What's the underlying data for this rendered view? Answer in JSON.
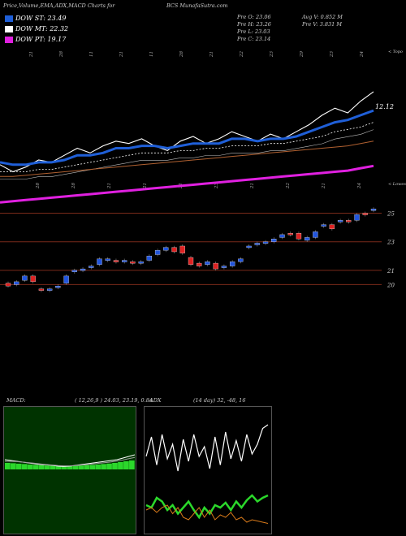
{
  "header": {
    "left": "Price,Volume,EMA,ADX,MACD Charts for",
    "symbol": "BCS MunafaSutra.com"
  },
  "legend": [
    {
      "label": "DOW ST: 23.49",
      "color": "#1f5fd8"
    },
    {
      "label": "DOW MT: 22.32",
      "color": "#ffffff"
    },
    {
      "label": "DOW PT: 19.17",
      "color": "#e020e0"
    }
  ],
  "stats": {
    "open": "Pre O: 23.06",
    "high": "Pre H: 23.26",
    "low": "Pre L: 23.03",
    "close": "Pre C: 23.14",
    "avg_vol": "Avg V: 0.852 M",
    "pre_vol": "Pre V: 3.831 M"
  },
  "axis_labels": {
    "top_right": "< Topo",
    "mid_right": "< Lowes",
    "ema_value": "12.12"
  },
  "date_row_top": [
    "21",
    "28",
    "11",
    "21",
    "11",
    "28",
    "21",
    "22",
    "23",
    "29",
    "23",
    "24"
  ],
  "date_row_mid": [
    "28",
    "28",
    "21",
    "21",
    "21",
    "23",
    "21",
    "22",
    "21",
    "24"
  ],
  "chart_data": [
    {
      "type": "line",
      "name": "price-ema",
      "series": [
        {
          "name": "price",
          "values": [
            10.2,
            9.9,
            10.1,
            10.4,
            10.3,
            10.6,
            10.9,
            10.7,
            11.0,
            11.2,
            11.1,
            11.3,
            11.0,
            10.8,
            11.2,
            11.4,
            11.1,
            11.3,
            11.6,
            11.4,
            11.2,
            11.5,
            11.3,
            11.6,
            11.9,
            12.3,
            12.6,
            12.4,
            12.9,
            13.3
          ]
        },
        {
          "name": "ema_short",
          "values": [
            10.3,
            10.2,
            10.2,
            10.3,
            10.3,
            10.4,
            10.6,
            10.6,
            10.7,
            10.9,
            10.9,
            11.0,
            11.0,
            10.9,
            11.0,
            11.1,
            11.1,
            11.1,
            11.3,
            11.3,
            11.2,
            11.3,
            11.3,
            11.4,
            11.6,
            11.8,
            12.0,
            12.1,
            12.3,
            12.5
          ]
        },
        {
          "name": "ema_mid",
          "values": [
            9.9,
            9.9,
            9.9,
            10.0,
            10.0,
            10.1,
            10.2,
            10.3,
            10.4,
            10.5,
            10.6,
            10.7,
            10.7,
            10.7,
            10.8,
            10.8,
            10.9,
            10.9,
            11.0,
            11.0,
            11.0,
            11.1,
            11.1,
            11.2,
            11.3,
            11.4,
            11.6,
            11.7,
            11.8,
            12.0
          ]
        },
        {
          "name": "ema_long",
          "values": [
            9.7,
            9.7,
            9.75,
            9.8,
            9.85,
            9.9,
            9.95,
            10.0,
            10.05,
            10.1,
            10.15,
            10.2,
            10.25,
            10.3,
            10.35,
            10.4,
            10.45,
            10.5,
            10.55,
            10.6,
            10.65,
            10.7,
            10.75,
            10.8,
            10.85,
            10.9,
            10.95,
            11.0,
            11.1,
            11.2
          ]
        },
        {
          "name": "ema_pt",
          "values": [
            8.6,
            8.65,
            8.7,
            8.75,
            8.8,
            8.85,
            8.9,
            8.95,
            9.0,
            9.05,
            9.1,
            9.15,
            9.2,
            9.25,
            9.3,
            9.35,
            9.4,
            9.45,
            9.5,
            9.55,
            9.6,
            9.65,
            9.7,
            9.75,
            9.8,
            9.85,
            9.9,
            9.95,
            10.05,
            10.15
          ]
        }
      ]
    },
    {
      "type": "candlestick",
      "name": "daily-candles",
      "levels": [
        "25",
        "23",
        "21",
        "20"
      ],
      "candles": [
        {
          "o": 20.1,
          "c": 19.9,
          "up": false
        },
        {
          "o": 20.0,
          "c": 20.2,
          "up": true
        },
        {
          "o": 20.3,
          "c": 20.6,
          "up": true
        },
        {
          "o": 20.6,
          "c": 20.2,
          "up": false
        },
        {
          "o": 19.7,
          "c": 19.6,
          "up": false
        },
        {
          "o": 19.6,
          "c": 19.7,
          "up": true
        },
        {
          "o": 19.8,
          "c": 19.9,
          "up": true
        },
        {
          "o": 20.1,
          "c": 20.6,
          "up": true
        },
        {
          "o": 20.9,
          "c": 21.0,
          "up": true
        },
        {
          "o": 21.0,
          "c": 21.1,
          "up": true
        },
        {
          "o": 21.2,
          "c": 21.3,
          "up": true
        },
        {
          "o": 21.4,
          "c": 21.8,
          "up": true
        },
        {
          "o": 21.7,
          "c": 21.8,
          "up": true
        },
        {
          "o": 21.7,
          "c": 21.6,
          "up": false
        },
        {
          "o": 21.6,
          "c": 21.7,
          "up": true
        },
        {
          "o": 21.6,
          "c": 21.5,
          "up": false
        },
        {
          "o": 21.5,
          "c": 21.6,
          "up": true
        },
        {
          "o": 21.7,
          "c": 22.0,
          "up": true
        },
        {
          "o": 22.1,
          "c": 22.4,
          "up": true
        },
        {
          "o": 22.4,
          "c": 22.6,
          "up": true
        },
        {
          "o": 22.6,
          "c": 22.3,
          "up": false
        },
        {
          "o": 22.7,
          "c": 22.2,
          "up": false
        },
        {
          "o": 21.9,
          "c": 21.4,
          "up": false
        },
        {
          "o": 21.5,
          "c": 21.3,
          "up": false
        },
        {
          "o": 21.4,
          "c": 21.6,
          "up": true
        },
        {
          "o": 21.5,
          "c": 21.1,
          "up": false
        },
        {
          "o": 21.2,
          "c": 21.3,
          "up": true
        },
        {
          "o": 21.3,
          "c": 21.6,
          "up": true
        },
        {
          "o": 21.6,
          "c": 21.8,
          "up": true
        },
        {
          "o": 22.6,
          "c": 22.7,
          "up": true
        },
        {
          "o": 22.8,
          "c": 22.9,
          "up": true
        },
        {
          "o": 22.9,
          "c": 23.0,
          "up": true
        },
        {
          "o": 23.0,
          "c": 23.2,
          "up": true
        },
        {
          "o": 23.3,
          "c": 23.5,
          "up": true
        },
        {
          "o": 23.6,
          "c": 23.5,
          "up": false
        },
        {
          "o": 23.6,
          "c": 23.2,
          "up": false
        },
        {
          "o": 23.1,
          "c": 23.3,
          "up": true
        },
        {
          "o": 23.3,
          "c": 23.7,
          "up": true
        },
        {
          "o": 24.1,
          "c": 24.2,
          "up": true
        },
        {
          "o": 24.2,
          "c": 23.9,
          "up": false
        },
        {
          "o": 24.4,
          "c": 24.5,
          "up": true
        },
        {
          "o": 24.5,
          "c": 24.4,
          "up": false
        },
        {
          "o": 24.5,
          "c": 24.9,
          "up": true
        },
        {
          "o": 25.0,
          "c": 25.0,
          "up": false
        },
        {
          "o": 25.2,
          "c": 25.3,
          "up": true
        }
      ]
    },
    {
      "type": "line",
      "name": "macd",
      "title": "MACD:",
      "params": "( 12,26,9 ) 24.03, 23.19, 0.84",
      "series": [
        {
          "name": "macd",
          "values": [
            0.6,
            0.55,
            0.5,
            0.45,
            0.4,
            0.35,
            0.3,
            0.28,
            0.25,
            0.2,
            0.18,
            0.2,
            0.25,
            0.3,
            0.35,
            0.4,
            0.45,
            0.5,
            0.55,
            0.6,
            0.7,
            0.8,
            0.9
          ]
        },
        {
          "name": "signal",
          "values": [
            0.5,
            0.5,
            0.48,
            0.45,
            0.42,
            0.38,
            0.34,
            0.3,
            0.27,
            0.24,
            0.22,
            0.22,
            0.24,
            0.27,
            0.3,
            0.34,
            0.38,
            0.42,
            0.46,
            0.52,
            0.58,
            0.66,
            0.74
          ]
        },
        {
          "name": "histogram",
          "values": [
            0.4,
            0.38,
            0.35,
            0.33,
            0.3,
            0.28,
            0.26,
            0.24,
            0.22,
            0.2,
            0.19,
            0.2,
            0.22,
            0.24,
            0.26,
            0.28,
            0.3,
            0.33,
            0.36,
            0.4,
            0.45,
            0.5,
            0.55
          ]
        }
      ]
    },
    {
      "type": "line",
      "name": "adx",
      "title": "ADX",
      "params": "(14 day) 32, -48, 16",
      "series": [
        {
          "name": "adx_upper",
          "values": [
            0.62,
            0.78,
            0.55,
            0.8,
            0.6,
            0.72,
            0.5,
            0.76,
            0.58,
            0.8,
            0.62,
            0.7,
            0.52,
            0.78,
            0.55,
            0.82,
            0.6,
            0.75,
            0.58,
            0.8,
            0.64,
            0.72,
            0.85,
            0.88
          ]
        },
        {
          "name": "di_plus",
          "values": [
            0.22,
            0.2,
            0.28,
            0.25,
            0.18,
            0.22,
            0.15,
            0.2,
            0.25,
            0.18,
            0.12,
            0.2,
            0.15,
            0.22,
            0.2,
            0.24,
            0.18,
            0.25,
            0.2,
            0.26,
            0.3,
            0.25,
            0.28,
            0.3
          ]
        },
        {
          "name": "di_minus",
          "values": [
            0.18,
            0.2,
            0.16,
            0.2,
            0.22,
            0.15,
            0.2,
            0.12,
            0.1,
            0.15,
            0.2,
            0.12,
            0.18,
            0.1,
            0.14,
            0.12,
            0.16,
            0.1,
            0.12,
            0.08,
            0.1,
            0.09,
            0.08,
            0.07
          ]
        }
      ]
    }
  ]
}
